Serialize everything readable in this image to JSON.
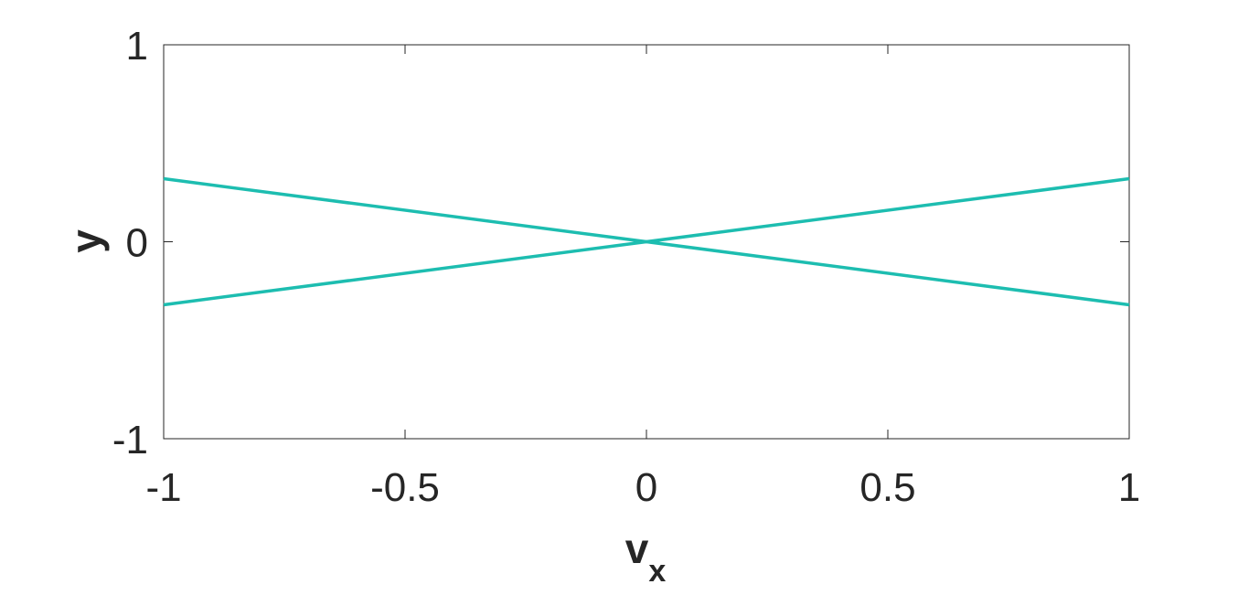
{
  "chart_data": {
    "type": "line",
    "title": "",
    "xlabel": {
      "main": "v",
      "subscript": "x"
    },
    "ylabel": "y",
    "xlim": [
      -1,
      1
    ],
    "ylim": [
      -1,
      1
    ],
    "xticks": [
      -1,
      -0.5,
      0,
      0.5,
      1
    ],
    "xtick_labels": [
      "-1",
      "-0.5",
      "0",
      "0.5",
      "1"
    ],
    "yticks": [
      -1,
      0,
      1
    ],
    "ytick_labels": [
      "-1",
      "0",
      "1"
    ],
    "grid": false,
    "legend": "none",
    "series": [
      {
        "color": "#1dbdb0",
        "x": [
          -1,
          1
        ],
        "y": [
          0.32,
          -0.32
        ]
      },
      {
        "color": "#1dbdb0",
        "x": [
          -1,
          1
        ],
        "y": [
          -0.32,
          0.32
        ]
      }
    ]
  }
}
